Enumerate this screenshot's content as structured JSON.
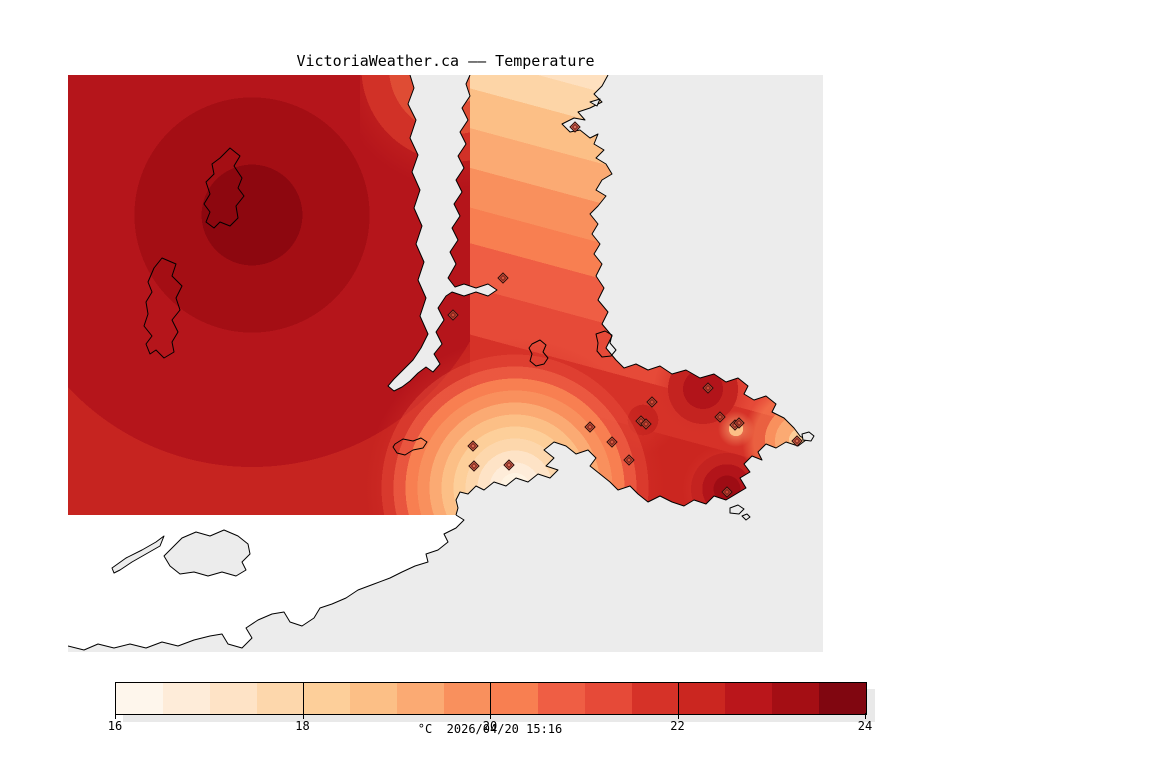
{
  "figure": {
    "title": "VictoriaWeather.ca —— Temperature",
    "units_label": "°C",
    "timestamp": "2026/04/20 15:16"
  },
  "colorbar": {
    "min": 16,
    "max": 24,
    "interval": 0.5,
    "ticks": [
      "16",
      "18",
      "20",
      "22",
      "24"
    ],
    "colors": [
      "#fef6ec",
      "#feecd9",
      "#fee3c6",
      "#fdd7ac",
      "#fdcf9a",
      "#fcbf86",
      "#fbaa73",
      "#f9905d",
      "#f87f51",
      "#ef5e44",
      "#e64a38",
      "#d63228",
      "#cb2620",
      "#ba161b",
      "#a40e14",
      "#800610"
    ]
  },
  "map": {
    "sea_color": "#ececec",
    "nodata_land_color": "#ffffff",
    "station_positions": [
      [
        575,
        127
      ],
      [
        503,
        278
      ],
      [
        453,
        315
      ],
      [
        473,
        446
      ],
      [
        474,
        466
      ],
      [
        509,
        465
      ],
      [
        590,
        427
      ],
      [
        612,
        442
      ],
      [
        629,
        460
      ],
      [
        641,
        421
      ],
      [
        646,
        424
      ],
      [
        652,
        402
      ],
      [
        708,
        388
      ],
      [
        720,
        417
      ],
      [
        735,
        425
      ],
      [
        739,
        423
      ],
      [
        727,
        492
      ],
      [
        797,
        441
      ]
    ]
  }
}
